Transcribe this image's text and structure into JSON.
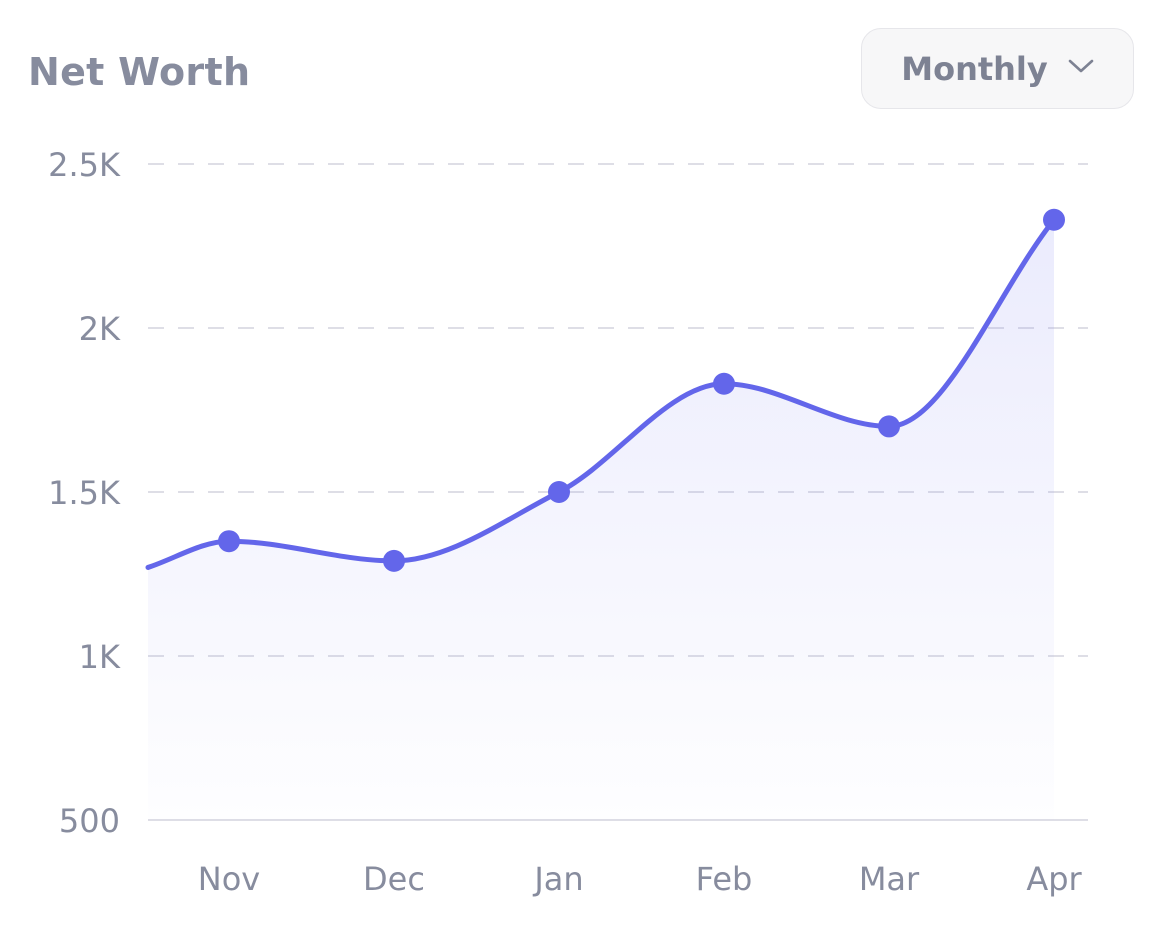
{
  "card": {
    "title": "Net Worth"
  },
  "period_selector": {
    "label": "Monthly",
    "icon": "chevron-down-icon"
  },
  "colors": {
    "line": "#6366ea",
    "fill": "#8083f0",
    "grid": "#dedee6",
    "axis_text": "#878c9e"
  },
  "chart_data": {
    "type": "area",
    "title": "Net Worth",
    "xlabel": "",
    "ylabel": "",
    "categories": [
      "Nov",
      "Dec",
      "Jan",
      "Feb",
      "Mar",
      "Apr"
    ],
    "values": [
      1350,
      1290,
      1500,
      1830,
      1700,
      2330
    ],
    "start_value": 1270,
    "ylim": [
      500,
      2500
    ],
    "y_ticks": [
      {
        "value": 2500,
        "label": "2.5K"
      },
      {
        "value": 2000,
        "label": "2K"
      },
      {
        "value": 1500,
        "label": "1.5K"
      },
      {
        "value": 1000,
        "label": "1K"
      },
      {
        "value": 500,
        "label": "500"
      }
    ],
    "grid": true,
    "smooth": true,
    "legend": "none"
  }
}
